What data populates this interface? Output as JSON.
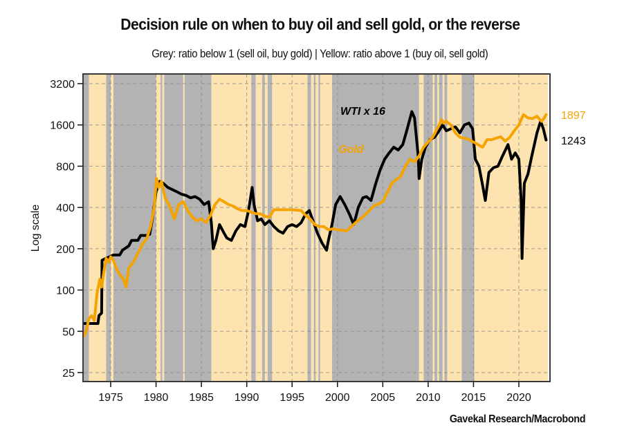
{
  "chart_data": {
    "type": "line",
    "title": "Decision rule on when to buy oil and sell gold, or the reverse",
    "subtitle": "Grey: ratio below 1 (sell oil, buy gold) | Yellow: ratio above 1 (buy oil, sell gold)",
    "source": "Gavekal Research/Macrobond",
    "ylabel": "Log scale",
    "xlabel": "",
    "yscale": "log2",
    "ylim": [
      22,
      3600
    ],
    "xlim": [
      1971.95,
      2023.4
    ],
    "grid": true,
    "y_ticks": [
      25,
      50,
      100,
      200,
      400,
      800,
      1600,
      3200
    ],
    "y_tick_labels": [
      "25",
      "50",
      "100",
      "200",
      "400",
      "800",
      "1600",
      "3200"
    ],
    "x_ticks": [
      1975,
      1980,
      1985,
      1990,
      1995,
      2000,
      2005,
      2010,
      2015,
      2020
    ],
    "x_tick_labels": [
      "1975",
      "1980",
      "1985",
      "1990",
      "1995",
      "2000",
      "2005",
      "2010",
      "2015",
      "2020"
    ],
    "colors": {
      "grey_band": "#b3b3b3",
      "yellow_band": "#fde3b0",
      "gold": "#f5a300",
      "wti": "#000000"
    },
    "annotations": [
      {
        "text": "WTI x 16",
        "x": 2002.8,
        "y": 1900,
        "color": "#000000"
      },
      {
        "text": "Gold",
        "x": 2001.5,
        "y": 1000,
        "color": "#f5a300"
      }
    ],
    "end_labels": [
      {
        "series": "Gold",
        "text": "1897",
        "color": "#f5a300"
      },
      {
        "series": "WTI x 16",
        "text": "1243",
        "color": "#000000"
      }
    ],
    "bands": [
      {
        "start": 1971.95,
        "end": 1972.6,
        "state": "grey"
      },
      {
        "start": 1972.6,
        "end": 1974.5,
        "state": "yellow"
      },
      {
        "start": 1974.5,
        "end": 1975.0,
        "state": "grey"
      },
      {
        "start": 1975.0,
        "end": 1975.3,
        "state": "yellow"
      },
      {
        "start": 1975.3,
        "end": 1980.0,
        "state": "grey"
      },
      {
        "start": 1980.0,
        "end": 1980.5,
        "state": "yellow"
      },
      {
        "start": 1980.5,
        "end": 1980.7,
        "state": "grey"
      },
      {
        "start": 1980.7,
        "end": 1980.9,
        "state": "yellow"
      },
      {
        "start": 1980.9,
        "end": 1983.0,
        "state": "grey"
      },
      {
        "start": 1983.0,
        "end": 1983.15,
        "state": "yellow"
      },
      {
        "start": 1983.15,
        "end": 1986.1,
        "state": "grey"
      },
      {
        "start": 1986.1,
        "end": 1990.5,
        "state": "yellow"
      },
      {
        "start": 1990.5,
        "end": 1991.0,
        "state": "grey"
      },
      {
        "start": 1991.0,
        "end": 1991.7,
        "state": "yellow"
      },
      {
        "start": 1991.7,
        "end": 1992.0,
        "state": "grey"
      },
      {
        "start": 1992.0,
        "end": 1992.3,
        "state": "yellow"
      },
      {
        "start": 1992.3,
        "end": 1992.8,
        "state": "grey"
      },
      {
        "start": 1992.8,
        "end": 1996.7,
        "state": "yellow"
      },
      {
        "start": 1996.7,
        "end": 1997.1,
        "state": "grey"
      },
      {
        "start": 1997.1,
        "end": 1997.4,
        "state": "yellow"
      },
      {
        "start": 1997.4,
        "end": 1997.6,
        "state": "grey"
      },
      {
        "start": 1997.6,
        "end": 1997.9,
        "state": "yellow"
      },
      {
        "start": 1997.9,
        "end": 1998.1,
        "state": "grey"
      },
      {
        "start": 1998.1,
        "end": 1999.4,
        "state": "yellow"
      },
      {
        "start": 1999.4,
        "end": 2009.0,
        "state": "grey"
      },
      {
        "start": 2009.0,
        "end": 2009.5,
        "state": "yellow"
      },
      {
        "start": 2009.5,
        "end": 2010.5,
        "state": "grey"
      },
      {
        "start": 2010.5,
        "end": 2010.7,
        "state": "yellow"
      },
      {
        "start": 2010.7,
        "end": 2011.0,
        "state": "grey"
      },
      {
        "start": 2011.0,
        "end": 2011.2,
        "state": "yellow"
      },
      {
        "start": 2011.2,
        "end": 2011.6,
        "state": "grey"
      },
      {
        "start": 2011.6,
        "end": 2011.8,
        "state": "yellow"
      },
      {
        "start": 2011.8,
        "end": 2012.1,
        "state": "grey"
      },
      {
        "start": 2012.1,
        "end": 2013.7,
        "state": "yellow"
      },
      {
        "start": 2013.7,
        "end": 2015.1,
        "state": "grey"
      },
      {
        "start": 2015.1,
        "end": 2023.2,
        "state": "yellow"
      }
    ],
    "series": [
      {
        "name": "Gold",
        "color": "#f5a300",
        "x": [
          1972.0,
          1972.3,
          1972.6,
          1972.9,
          1973.2,
          1973.5,
          1973.8,
          1974.0,
          1974.2,
          1974.5,
          1974.8,
          1975.0,
          1975.3,
          1975.6,
          1976.0,
          1976.4,
          1976.7,
          1977.0,
          1977.5,
          1978.0,
          1978.5,
          1979.0,
          1979.4,
          1979.8,
          1980.05,
          1980.3,
          1980.6,
          1981.0,
          1981.5,
          1982.0,
          1982.5,
          1983.0,
          1983.5,
          1984.0,
          1984.5,
          1985.0,
          1985.5,
          1986.0,
          1986.5,
          1987.0,
          1987.5,
          1988.0,
          1988.5,
          1989.0,
          1989.5,
          1990.0,
          1990.5,
          1991.0,
          1991.5,
          1992.0,
          1992.5,
          1993.0,
          1993.5,
          1994.0,
          1995.0,
          1996.0,
          1996.5,
          1997.0,
          1997.5,
          1998.0,
          1998.5,
          1999.0,
          1999.5,
          2000.0,
          2001.0,
          2002.0,
          2003.0,
          2004.0,
          2005.0,
          2006.0,
          2006.5,
          2007.0,
          2007.5,
          2008.0,
          2008.5,
          2009.0,
          2009.5,
          2010.0,
          2010.5,
          2011.0,
          2011.5,
          2011.7,
          2012.0,
          2012.5,
          2013.0,
          2013.5,
          2014.0,
          2014.5,
          2015.0,
          2015.5,
          2016.0,
          2016.5,
          2017.0,
          2017.5,
          2018.0,
          2018.5,
          2019.0,
          2019.5,
          2020.0,
          2020.5,
          2021.0,
          2021.5,
          2022.0,
          2022.5,
          2022.8,
          2023.0
        ],
        "values": [
          46,
          50,
          62,
          65,
          60,
          95,
          120,
          105,
          130,
          170,
          160,
          175,
          165,
          145,
          130,
          120,
          105,
          145,
          160,
          185,
          215,
          240,
          290,
          400,
          650,
          560,
          620,
          470,
          410,
          330,
          420,
          440,
          380,
          340,
          320,
          330,
          310,
          350,
          420,
          460,
          440,
          420,
          410,
          390,
          380,
          380,
          370,
          360,
          360,
          345,
          340,
          385,
          385,
          385,
          385,
          380,
          350,
          330,
          300,
          290,
          290,
          275,
          280,
          275,
          270,
          310,
          350,
          410,
          440,
          600,
          640,
          680,
          800,
          900,
          860,
          950,
          1100,
          1200,
          1300,
          1500,
          1750,
          1650,
          1700,
          1600,
          1400,
          1300,
          1280,
          1250,
          1200,
          1150,
          1100,
          1250,
          1250,
          1280,
          1310,
          1220,
          1300,
          1450,
          1600,
          1900,
          1800,
          1780,
          1850,
          1700,
          1800,
          1897
        ]
      },
      {
        "name": "WTI x 16",
        "color": "#000000",
        "x": [
          1972.0,
          1973.6,
          1973.7,
          1974.0,
          1974.05,
          1975.3,
          1976.0,
          1976.3,
          1977.0,
          1977.3,
          1978.0,
          1978.3,
          1979.0,
          1979.3,
          1979.6,
          1980.0,
          1980.4,
          1980.8,
          1981.3,
          1981.8,
          1982.3,
          1982.8,
          1983.3,
          1983.8,
          1984.3,
          1984.8,
          1985.3,
          1985.8,
          1986.1,
          1986.3,
          1986.6,
          1987.0,
          1987.5,
          1987.8,
          1988.3,
          1988.8,
          1989.3,
          1989.8,
          1990.2,
          1990.6,
          1990.8,
          1991.2,
          1991.6,
          1992.0,
          1992.5,
          1993.0,
          1993.5,
          1994.0,
          1994.5,
          1995.0,
          1995.5,
          1996.0,
          1996.5,
          1996.9,
          1997.3,
          1997.8,
          1998.3,
          1998.8,
          1999.0,
          1999.4,
          1999.8,
          2000.3,
          2000.8,
          2001.3,
          2001.8,
          2002.3,
          2002.8,
          2003.2,
          2003.7,
          2004.2,
          2004.7,
          2005.2,
          2005.7,
          2006.2,
          2006.7,
          2007.2,
          2007.7,
          2008.2,
          2008.5,
          2008.9,
          2009.0,
          2009.3,
          2009.7,
          2010.2,
          2010.7,
          2011.2,
          2011.6,
          2012.0,
          2012.5,
          2013.0,
          2013.5,
          2014.0,
          2014.5,
          2014.9,
          2015.2,
          2015.6,
          2016.0,
          2016.3,
          2016.7,
          2017.2,
          2017.7,
          2018.2,
          2018.8,
          2019.2,
          2019.6,
          2020.0,
          2020.25,
          2020.35,
          2020.6,
          2021.0,
          2021.5,
          2022.0,
          2022.4,
          2022.7,
          2023.0
        ],
        "values": [
          57,
          57,
          65,
          68,
          165,
          180,
          180,
          195,
          210,
          230,
          230,
          250,
          250,
          255,
          330,
          520,
          620,
          600,
          560,
          540,
          520,
          500,
          490,
          470,
          480,
          460,
          420,
          440,
          310,
          200,
          230,
          300,
          260,
          240,
          230,
          270,
          300,
          290,
          380,
          560,
          420,
          320,
          330,
          300,
          320,
          290,
          270,
          260,
          290,
          300,
          290,
          310,
          360,
          380,
          320,
          260,
          220,
          195,
          230,
          300,
          420,
          480,
          420,
          360,
          300,
          400,
          470,
          480,
          450,
          590,
          750,
          900,
          1000,
          1100,
          1050,
          1150,
          1500,
          2000,
          1800,
          950,
          650,
          900,
          1100,
          1250,
          1300,
          1450,
          1600,
          1450,
          1500,
          1550,
          1400,
          1600,
          1650,
          1500,
          900,
          800,
          580,
          450,
          720,
          780,
          800,
          950,
          1150,
          900,
          1000,
          900,
          450,
          170,
          600,
          700,
          1000,
          1400,
          1700,
          1500,
          1243
        ]
      }
    ]
  }
}
